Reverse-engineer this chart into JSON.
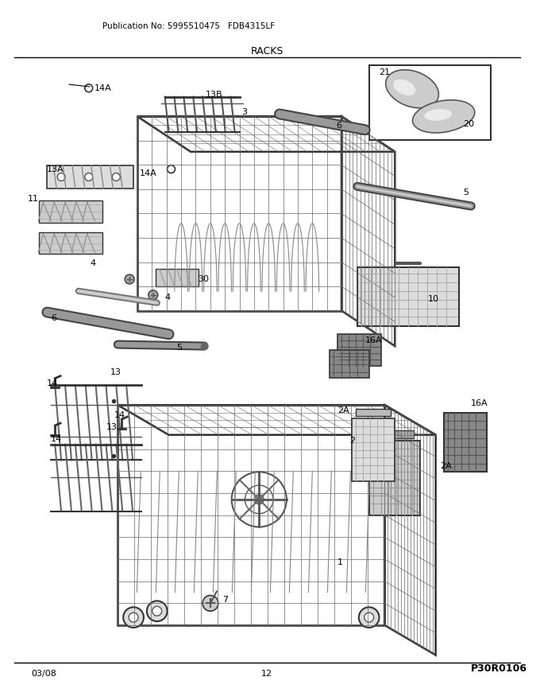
{
  "title": "RACKS",
  "pub_no": "Publication No: 5995510475",
  "model": "FDB4315LF",
  "date": "03/08",
  "page": "12",
  "part_code": "P30R0106",
  "bg_color": "#ffffff",
  "line_color": "#000000",
  "fig_width": 6.8,
  "fig_height": 8.8,
  "dpi": 100
}
